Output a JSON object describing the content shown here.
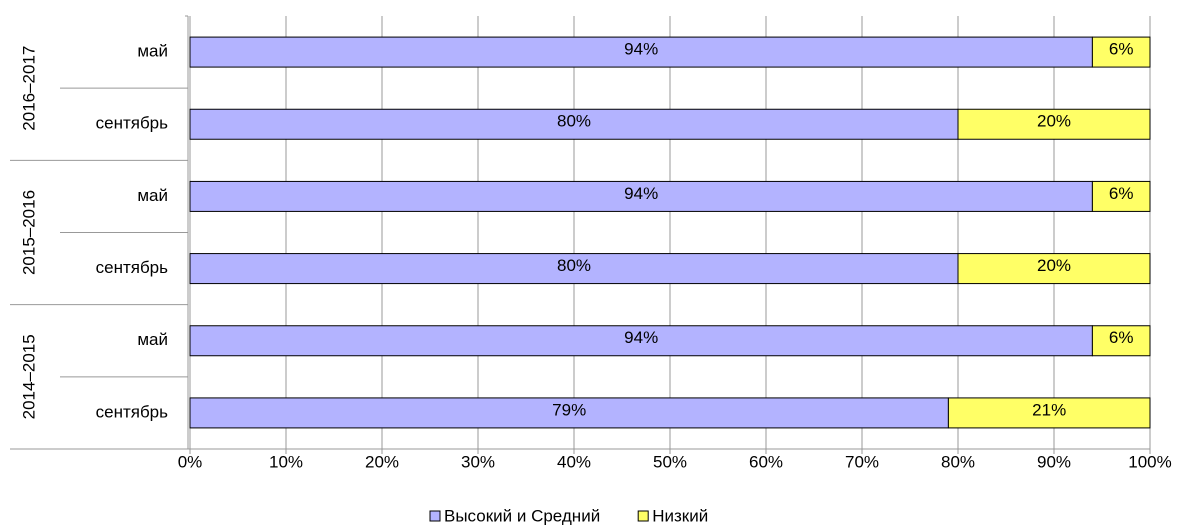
{
  "chart_data": {
    "type": "stacked-bar-horizontal",
    "categories": [
      "май",
      "сентябрь",
      "май",
      "сентябрь",
      "май",
      "сентябрь"
    ],
    "groups": [
      "2016–2017",
      "2015–2016",
      "2014–2015"
    ],
    "series": [
      {
        "name": "Высокий и Средний",
        "color": "#b3b3ff",
        "values": [
          94,
          80,
          94,
          80,
          94,
          79
        ],
        "value_labels": [
          "94%",
          "80%",
          "94%",
          "80%",
          "94%",
          "79%"
        ]
      },
      {
        "name": "Низкий",
        "color": "#ffff66",
        "values": [
          6,
          20,
          6,
          20,
          6,
          21
        ],
        "value_labels": [
          "6%",
          "20%",
          "6%",
          "20%",
          "6%",
          "21%"
        ]
      }
    ],
    "xlim": [
      0,
      100
    ],
    "xticks": [
      {
        "value": 0,
        "label": "0%"
      },
      {
        "value": 10,
        "label": "10%"
      },
      {
        "value": 20,
        "label": "20%"
      },
      {
        "value": 30,
        "label": "30%"
      },
      {
        "value": 40,
        "label": "40%"
      },
      {
        "value": 50,
        "label": "50%"
      },
      {
        "value": 60,
        "label": "60%"
      },
      {
        "value": 70,
        "label": "70%"
      },
      {
        "value": 80,
        "label": "80%"
      },
      {
        "value": 90,
        "label": "90%"
      },
      {
        "value": 100,
        "label": "100%"
      }
    ],
    "grid": true,
    "legend": "bottom"
  }
}
